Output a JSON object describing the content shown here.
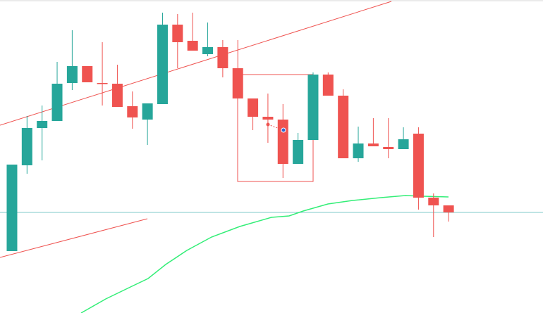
{
  "chart_data": {
    "type": "candlestick",
    "categories": [
      null,
      null,
      null,
      null,
      null,
      null,
      null,
      null,
      null,
      null,
      null,
      null,
      null,
      null,
      null,
      null,
      null,
      null,
      null,
      null,
      null,
      null,
      null,
      null,
      null,
      null,
      null,
      null,
      null,
      null
    ],
    "open": [
      88,
      210,
      263,
      273,
      327,
      351,
      327,
      326,
      294,
      275,
      297,
      410,
      387,
      368,
      378,
      348,
      305,
      279,
      275,
      212,
      246,
      339,
      309,
      220,
      241,
      236,
      233,
      255,
      164,
      153
    ],
    "high": [
      211,
      280,
      295,
      357,
      402,
      351,
      385,
      353,
      315,
      298,
      427,
      425,
      427,
      413,
      388,
      388,
      305,
      312,
      297,
      256,
      342,
      342,
      318,
      265,
      277,
      277,
      264,
      264,
      170,
      153
    ],
    "low": [
      88,
      198,
      217,
      273,
      317,
      328,
      295,
      293,
      262,
      239,
      297,
      348,
      373,
      365,
      335,
      305,
      260,
      242,
      192,
      212,
      246,
      309,
      220,
      215,
      237,
      220,
      233,
      147,
      108,
      130
    ],
    "close": [
      211,
      263,
      273,
      326,
      351,
      328,
      326,
      293,
      278,
      298,
      410,
      385,
      373,
      378,
      348,
      305,
      279,
      275,
      212,
      246,
      339,
      309,
      220,
      241,
      237,
      233,
      247,
      164,
      153,
      143
    ],
    "up_color": "#26a69a",
    "down_color": "#ef5350",
    "ylim": [
      0,
      445
    ]
  }
}
